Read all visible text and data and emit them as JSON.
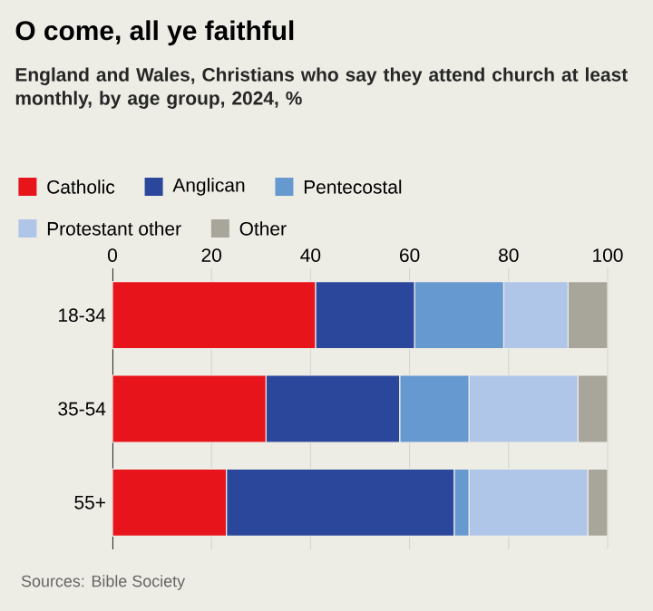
{
  "chart_data": {
    "type": "bar",
    "orientation": "horizontal",
    "stacked": true,
    "title": "O come, all ye faithful",
    "subtitle": "England and Wales, Christians who say they attend church at least monthly, by age group, 2024, %",
    "categories": [
      "18-34",
      "35-54",
      "55+"
    ],
    "series": [
      {
        "name": "Catholic",
        "color": "#e8141c",
        "values": [
          41,
          31,
          23
        ]
      },
      {
        "name": "Anglican",
        "color": "#2a479c",
        "values": [
          20,
          27,
          46
        ]
      },
      {
        "name": "Pentecostal",
        "color": "#6699d0",
        "values": [
          18,
          14,
          3
        ]
      },
      {
        "name": "Protestant other",
        "color": "#b0c6e8",
        "values": [
          13,
          22,
          24
        ]
      },
      {
        "name": "Other",
        "color": "#a8a59a",
        "values": [
          8,
          6,
          4
        ]
      }
    ],
    "xlim": [
      0,
      100
    ],
    "xticks": [
      0,
      20,
      40,
      60,
      80,
      100
    ],
    "grid": "x",
    "legend": "top",
    "annotations": [
      "Sources: Bible Society"
    ]
  }
}
